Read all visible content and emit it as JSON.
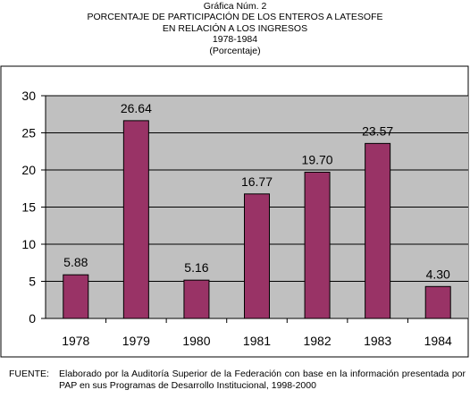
{
  "header": {
    "lines": [
      "Gráfica Núm. 2",
      "PORCENTAJE DE PARTICIPACIÓN DE LOS ENTEROS A LATESOFE",
      "EN RELACIÓN A LOS INGRESOS",
      "1978-1984",
      "(Porcentaje)"
    ]
  },
  "footer": {
    "label": "FUENTE:",
    "text": "Elaborado por la Auditoría Superior de la Federación con base en la información presentada por PAP en sus Programas de Desarrollo Institucional, 1998-2000"
  },
  "colors": {
    "bar": "#993366",
    "plot_background": "#c0c0c0",
    "frame": "#000000"
  },
  "chart_data": {
    "type": "bar",
    "title": "PORCENTAJE DE PARTICIPACIÓN DE LOS ENTEROS A LATESOFE EN RELACIÓN A LOS INGRESOS",
    "xlabel": "",
    "ylabel": "",
    "categories": [
      "1978",
      "1979",
      "1980",
      "1981",
      "1982",
      "1983",
      "1984"
    ],
    "values": [
      5.88,
      26.64,
      5.16,
      16.77,
      19.7,
      23.57,
      4.3
    ],
    "value_labels": [
      "5.88",
      "26.64",
      "5.16",
      "16.77",
      "19.70",
      "23.57",
      "4.30"
    ],
    "ylim": [
      0,
      30
    ],
    "yticks": [
      "0",
      "5",
      "10",
      "15",
      "20",
      "25",
      "30"
    ],
    "grid": true,
    "legend": "none"
  }
}
